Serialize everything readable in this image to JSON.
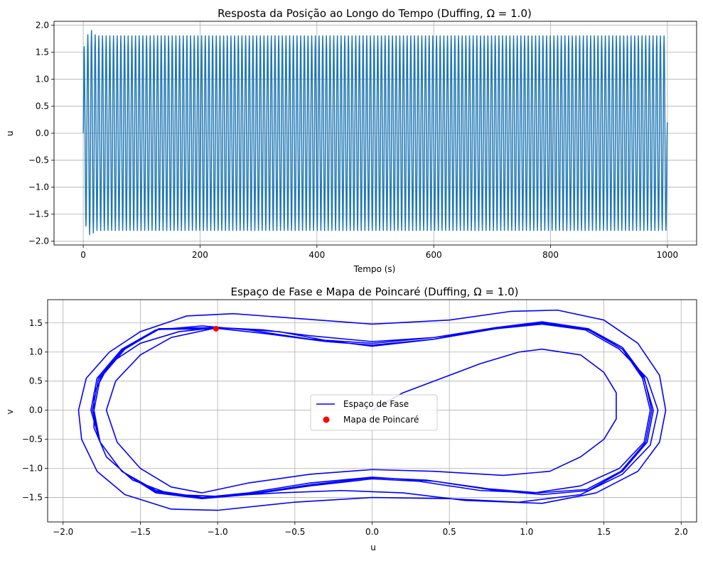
{
  "chart_data": [
    {
      "type": "line",
      "title": "Resposta da Posição ao Longo do Tempo (Duffing, Ω = 1.0)",
      "xlabel": "Tempo (s)",
      "ylabel": "u",
      "xlim": [
        -50,
        1050
      ],
      "ylim": [
        -2.07,
        2.07
      ],
      "xticks": [
        0,
        200,
        400,
        600,
        800,
        1000
      ],
      "xtick_labels": [
        "0",
        "200",
        "400",
        "600",
        "800",
        "1000"
      ],
      "yticks": [
        -2.0,
        -1.5,
        -1.0,
        -0.5,
        0.0,
        0.5,
        1.0,
        1.5,
        2.0
      ],
      "ytick_labels": [
        "−2.0",
        "−1.5",
        "−1.0",
        "−0.5",
        "0.0",
        "0.5",
        "1.0",
        "1.5",
        "2.0"
      ],
      "grid": true,
      "series": [
        {
          "color": "#1f77b4",
          "t_end": 1000,
          "period": 6.283,
          "steady_amplitude": 1.8,
          "initial_peaks": [
            1.6,
            -1.72,
            1.82,
            -1.88,
            1.9,
            -1.85,
            1.82
          ],
          "final_value": 0.2
        }
      ]
    },
    {
      "type": "line",
      "title": "Espaço de Fase e Mapa de Poincaré (Duffing, Ω = 1.0)",
      "xlabel": "u",
      "ylabel": "v",
      "xlim": [
        -2.1,
        2.1
      ],
      "ylim": [
        -1.92,
        1.9
      ],
      "xticks": [
        -2.0,
        -1.5,
        -1.0,
        -0.5,
        0.0,
        0.5,
        1.0,
        1.5,
        2.0
      ],
      "xtick_labels": [
        "−2.0",
        "−1.5",
        "−1.0",
        "−0.5",
        "0.0",
        "0.5",
        "1.0",
        "1.5",
        "2.0"
      ],
      "yticks": [
        -1.5,
        -1.0,
        -0.5,
        0.0,
        0.5,
        1.0,
        1.5
      ],
      "ytick_labels": [
        "−1.5",
        "−1.0",
        "−0.5",
        "0.0",
        "0.5",
        "1.0",
        "1.5"
      ],
      "grid": true,
      "legend": "center",
      "series": [
        {
          "name": "Espaço de Fase",
          "kind": "line",
          "color": "#0000ff",
          "points": [
            [
              0.0,
              0.0
            ],
            [
              0.2,
              0.3
            ],
            [
              0.45,
              0.55
            ],
            [
              0.7,
              0.8
            ],
            [
              0.95,
              1.0
            ],
            [
              1.1,
              1.05
            ],
            [
              1.35,
              0.95
            ],
            [
              1.5,
              0.65
            ],
            [
              1.58,
              0.3
            ],
            [
              1.58,
              -0.15
            ],
            [
              1.5,
              -0.5
            ],
            [
              1.35,
              -0.8
            ],
            [
              1.15,
              -1.05
            ],
            [
              0.85,
              -1.12
            ],
            [
              0.4,
              -1.05
            ],
            [
              0.0,
              -1.02
            ],
            [
              -0.4,
              -1.1
            ],
            [
              -0.8,
              -1.25
            ],
            [
              -1.1,
              -1.42
            ],
            [
              -1.3,
              -1.32
            ],
            [
              -1.5,
              -1.0
            ],
            [
              -1.65,
              -0.55
            ],
            [
              -1.72,
              0.0
            ],
            [
              -1.66,
              0.5
            ],
            [
              -1.5,
              0.95
            ],
            [
              -1.3,
              1.25
            ],
            [
              -1.0,
              1.42
            ],
            [
              -0.6,
              1.35
            ],
            [
              -0.3,
              1.2
            ],
            [
              0.0,
              1.1
            ],
            [
              0.4,
              1.22
            ],
            [
              0.8,
              1.42
            ],
            [
              1.1,
              1.52
            ],
            [
              1.4,
              1.4
            ],
            [
              1.62,
              1.05
            ],
            [
              1.75,
              0.55
            ],
            [
              1.8,
              0.0
            ],
            [
              1.76,
              -0.55
            ],
            [
              1.6,
              -1.0
            ],
            [
              1.35,
              -1.3
            ],
            [
              1.05,
              -1.42
            ],
            [
              0.7,
              -1.38
            ],
            [
              0.3,
              -1.22
            ],
            [
              0.0,
              -1.18
            ],
            [
              -0.4,
              -1.3
            ],
            [
              -0.8,
              -1.45
            ],
            [
              -1.1,
              -1.52
            ],
            [
              -1.4,
              -1.42
            ],
            [
              -1.62,
              -1.05
            ],
            [
              -1.76,
              -0.55
            ],
            [
              -1.82,
              0.0
            ],
            [
              -1.78,
              0.55
            ],
            [
              -1.62,
              1.05
            ],
            [
              -1.4,
              1.38
            ],
            [
              -1.1,
              1.45
            ],
            [
              -0.8,
              1.38
            ],
            [
              -0.4,
              1.22
            ],
            [
              0.0,
              1.15
            ],
            [
              0.4,
              1.25
            ],
            [
              0.8,
              1.42
            ],
            [
              1.1,
              1.5
            ],
            [
              1.4,
              1.38
            ],
            [
              1.62,
              1.05
            ],
            [
              1.76,
              0.55
            ],
            [
              1.82,
              0.0
            ],
            [
              1.78,
              -0.55
            ],
            [
              1.62,
              -1.05
            ],
            [
              1.4,
              -1.38
            ],
            [
              1.1,
              -1.45
            ],
            [
              0.8,
              -1.38
            ],
            [
              0.4,
              -1.22
            ],
            [
              0.0,
              -1.15
            ],
            [
              -0.4,
              -1.25
            ],
            [
              -0.8,
              -1.42
            ],
            [
              -1.1,
              -1.5
            ],
            [
              -1.4,
              -1.38
            ],
            [
              -1.62,
              -1.05
            ],
            [
              -1.76,
              -0.55
            ],
            [
              -1.8,
              0.0
            ],
            [
              -1.76,
              0.55
            ],
            [
              -1.6,
              1.05
            ],
            [
              -1.38,
              1.4
            ],
            [
              -1.05,
              1.42
            ],
            [
              -0.7,
              1.32
            ],
            [
              -0.3,
              1.18
            ],
            [
              0.0,
              1.12
            ],
            [
              0.4,
              1.22
            ],
            [
              0.8,
              1.4
            ],
            [
              1.1,
              1.48
            ],
            [
              1.38,
              1.38
            ],
            [
              1.6,
              1.05
            ],
            [
              1.78,
              0.55
            ],
            [
              1.85,
              0.0
            ],
            [
              1.8,
              -0.6
            ],
            [
              1.62,
              -1.1
            ],
            [
              1.35,
              -1.45
            ],
            [
              0.95,
              -1.58
            ],
            [
              0.5,
              -1.52
            ],
            [
              0.0,
              -1.5
            ],
            [
              -0.5,
              -1.58
            ],
            [
              -1.0,
              -1.72
            ],
            [
              -1.3,
              -1.7
            ],
            [
              -1.6,
              -1.45
            ],
            [
              -1.78,
              -1.05
            ],
            [
              -1.88,
              -0.5
            ],
            [
              -1.9,
              0.0
            ],
            [
              -1.85,
              0.55
            ],
            [
              -1.7,
              1.0
            ],
            [
              -1.5,
              1.35
            ],
            [
              -1.2,
              1.62
            ],
            [
              -0.9,
              1.66
            ],
            [
              -0.5,
              1.58
            ],
            [
              0.0,
              1.48
            ],
            [
              0.5,
              1.55
            ],
            [
              0.9,
              1.7
            ],
            [
              1.2,
              1.72
            ],
            [
              1.5,
              1.55
            ],
            [
              1.72,
              1.15
            ],
            [
              1.86,
              0.6
            ],
            [
              1.9,
              0.0
            ],
            [
              1.86,
              -0.55
            ],
            [
              1.72,
              -1.05
            ],
            [
              1.45,
              -1.42
            ],
            [
              1.1,
              -1.6
            ],
            [
              0.6,
              -1.55
            ],
            [
              0.2,
              -1.42
            ],
            [
              -0.2,
              -1.38
            ],
            [
              -0.6,
              -1.42
            ],
            [
              -1.0,
              -1.48
            ],
            [
              -1.3,
              -1.45
            ],
            [
              -1.55,
              -1.2
            ],
            [
              -1.72,
              -0.8
            ],
            [
              -1.8,
              -0.3
            ],
            [
              -1.8,
              0.3
            ],
            [
              -1.7,
              0.8
            ],
            [
              -1.5,
              1.15
            ],
            [
              -1.25,
              1.35
            ],
            [
              -1.0,
              1.42
            ],
            [
              -0.7,
              1.38
            ],
            [
              -0.4,
              1.28
            ],
            [
              0.0,
              1.18
            ],
            [
              0.4,
              1.25
            ],
            [
              0.8,
              1.4
            ],
            [
              1.1,
              1.5
            ],
            [
              1.4,
              1.4
            ],
            [
              1.62,
              1.08
            ],
            [
              1.76,
              0.58
            ],
            [
              1.81,
              0.0
            ],
            [
              1.77,
              -0.55
            ],
            [
              1.61,
              -1.05
            ],
            [
              1.39,
              -1.36
            ],
            [
              1.08,
              -1.42
            ],
            [
              0.75,
              -1.35
            ],
            [
              0.35,
              -1.2
            ],
            [
              0.0,
              -1.16
            ],
            [
              -0.4,
              -1.28
            ],
            [
              -0.8,
              -1.44
            ],
            [
              -1.1,
              -1.5
            ],
            [
              -1.4,
              -1.4
            ],
            [
              -1.62,
              -1.05
            ],
            [
              -1.76,
              -0.55
            ],
            [
              -1.81,
              0.0
            ],
            [
              -1.77,
              0.55
            ],
            [
              -1.61,
              1.05
            ],
            [
              -1.38,
              1.39
            ],
            [
              -1.0,
              1.4
            ]
          ]
        },
        {
          "name": "Mapa de Poincaré",
          "kind": "scatter",
          "color": "#ff0000",
          "points": [
            [
              -1.01,
              1.4
            ]
          ]
        }
      ]
    }
  ]
}
